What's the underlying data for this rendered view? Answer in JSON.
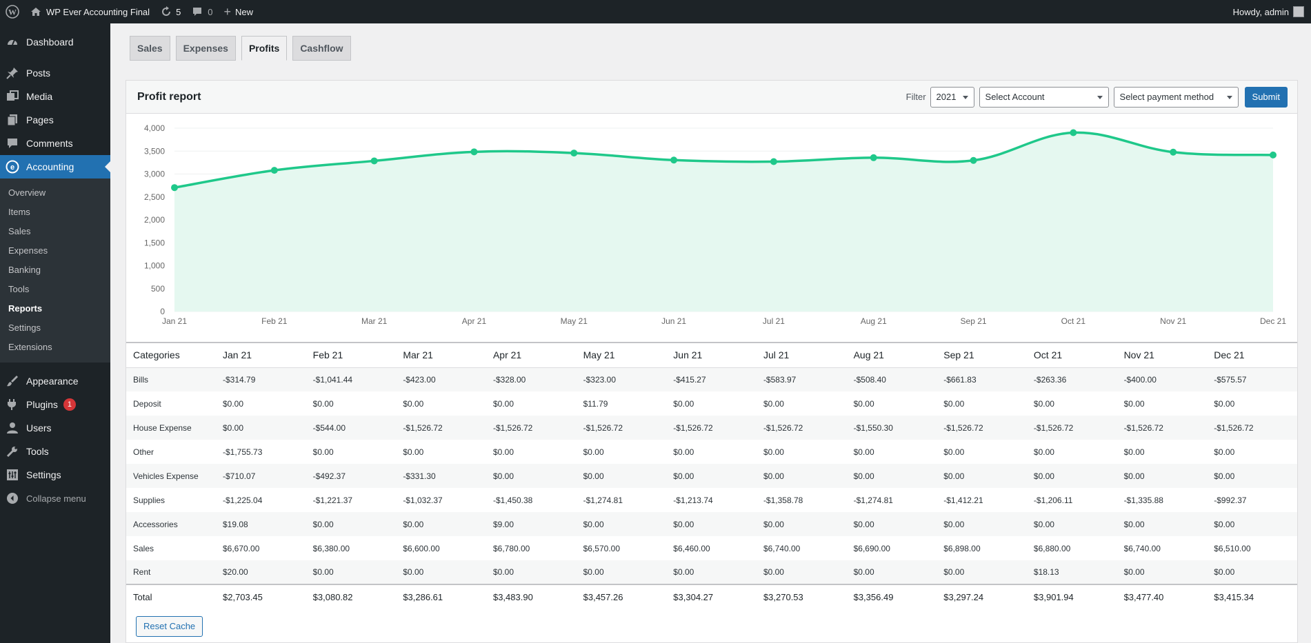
{
  "adminbar": {
    "site_name": "WP Ever Accounting Final",
    "updates_count": "5",
    "comments_count": "0",
    "new_label": "New",
    "howdy": "Howdy, admin"
  },
  "sidebar": {
    "items": [
      {
        "label": "Dashboard",
        "icon": "dashboard-icon"
      },
      {
        "label": "Posts",
        "icon": "pin-icon"
      },
      {
        "label": "Media",
        "icon": "media-icon"
      },
      {
        "label": "Pages",
        "icon": "pages-icon"
      },
      {
        "label": "Comments",
        "icon": "comment-icon"
      },
      {
        "label": "Accounting",
        "icon": "accounting-icon"
      },
      {
        "label": "Appearance",
        "icon": "brush-icon"
      },
      {
        "label": "Plugins",
        "icon": "plugin-icon",
        "badge": "1"
      },
      {
        "label": "Users",
        "icon": "user-icon"
      },
      {
        "label": "Tools",
        "icon": "wrench-icon"
      },
      {
        "label": "Settings",
        "icon": "settings-icon"
      }
    ],
    "submenu": [
      "Overview",
      "Items",
      "Sales",
      "Expenses",
      "Banking",
      "Tools",
      "Reports",
      "Settings",
      "Extensions"
    ],
    "collapse_label": "Collapse menu"
  },
  "tabs": [
    "Sales",
    "Expenses",
    "Profits",
    "Cashflow"
  ],
  "panel": {
    "title": "Profit report",
    "filter_label": "Filter",
    "year": "2021",
    "account_placeholder": "Select Account",
    "payment_placeholder": "Select payment method",
    "submit_label": "Submit",
    "reset_cache_label": "Reset Cache"
  },
  "colors": {
    "line": "#1fc88a",
    "area": "#e5f8f0",
    "accent": "#2271b1"
  },
  "chart_data": {
    "type": "area",
    "x": [
      "Jan 21",
      "Feb 21",
      "Mar 21",
      "Apr 21",
      "May 21",
      "Jun 21",
      "Jul 21",
      "Aug 21",
      "Sep 21",
      "Oct 21",
      "Nov 21",
      "Dec 21"
    ],
    "series": [
      {
        "values": [
          2703.45,
          3080.82,
          3286.61,
          3483.9,
          3457.26,
          3304.27,
          3270.53,
          3356.49,
          3297.24,
          3901.94,
          3477.4,
          3415.34
        ]
      }
    ],
    "yticks": [
      "4,000",
      "3,500",
      "3,000",
      "2,500",
      "2,000",
      "1,500",
      "1,000",
      "500",
      "0"
    ],
    "ylim": [
      0,
      4000
    ],
    "grid": true
  },
  "table": {
    "headers": [
      "Categories",
      "Jan 21",
      "Feb 21",
      "Mar 21",
      "Apr 21",
      "May 21",
      "Jun 21",
      "Jul 21",
      "Aug 21",
      "Sep 21",
      "Oct 21",
      "Nov 21",
      "Dec 21"
    ],
    "rows": [
      [
        "Bills",
        "-$314.79",
        "-$1,041.44",
        "-$423.00",
        "-$328.00",
        "-$323.00",
        "-$415.27",
        "-$583.97",
        "-$508.40",
        "-$661.83",
        "-$263.36",
        "-$400.00",
        "-$575.57"
      ],
      [
        "Deposit",
        "$0.00",
        "$0.00",
        "$0.00",
        "$0.00",
        "$11.79",
        "$0.00",
        "$0.00",
        "$0.00",
        "$0.00",
        "$0.00",
        "$0.00",
        "$0.00"
      ],
      [
        "House Expense",
        "$0.00",
        "-$544.00",
        "-$1,526.72",
        "-$1,526.72",
        "-$1,526.72",
        "-$1,526.72",
        "-$1,526.72",
        "-$1,550.30",
        "-$1,526.72",
        "-$1,526.72",
        "-$1,526.72",
        "-$1,526.72"
      ],
      [
        "Other",
        "-$1,755.73",
        "$0.00",
        "$0.00",
        "$0.00",
        "$0.00",
        "$0.00",
        "$0.00",
        "$0.00",
        "$0.00",
        "$0.00",
        "$0.00",
        "$0.00"
      ],
      [
        "Vehicles Expense",
        "-$710.07",
        "-$492.37",
        "-$331.30",
        "$0.00",
        "$0.00",
        "$0.00",
        "$0.00",
        "$0.00",
        "$0.00",
        "$0.00",
        "$0.00",
        "$0.00"
      ],
      [
        "Supplies",
        "-$1,225.04",
        "-$1,221.37",
        "-$1,032.37",
        "-$1,450.38",
        "-$1,274.81",
        "-$1,213.74",
        "-$1,358.78",
        "-$1,274.81",
        "-$1,412.21",
        "-$1,206.11",
        "-$1,335.88",
        "-$992.37"
      ],
      [
        "Accessories",
        "$19.08",
        "$0.00",
        "$0.00",
        "$9.00",
        "$0.00",
        "$0.00",
        "$0.00",
        "$0.00",
        "$0.00",
        "$0.00",
        "$0.00",
        "$0.00"
      ],
      [
        "Sales",
        "$6,670.00",
        "$6,380.00",
        "$6,600.00",
        "$6,780.00",
        "$6,570.00",
        "$6,460.00",
        "$6,740.00",
        "$6,690.00",
        "$6,898.00",
        "$6,880.00",
        "$6,740.00",
        "$6,510.00"
      ],
      [
        "Rent",
        "$20.00",
        "$0.00",
        "$0.00",
        "$0.00",
        "$0.00",
        "$0.00",
        "$0.00",
        "$0.00",
        "$0.00",
        "$18.13",
        "$0.00",
        "$0.00"
      ]
    ],
    "total": [
      "Total",
      "$2,703.45",
      "$3,080.82",
      "$3,286.61",
      "$3,483.90",
      "$3,457.26",
      "$3,304.27",
      "$3,270.53",
      "$3,356.49",
      "$3,297.24",
      "$3,901.94",
      "$3,477.40",
      "$3,415.34"
    ]
  }
}
